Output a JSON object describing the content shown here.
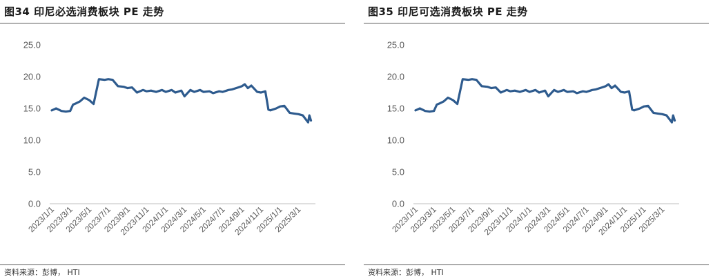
{
  "chart_data": [
    {
      "type": "line",
      "title": "图34 印尼必选消费板块 PE 走势",
      "source": "资料来源：彭博， HTI",
      "ylim": [
        0,
        25
      ],
      "yticks": [
        "25.0",
        "20.0",
        "15.0",
        "10.0",
        "5.0",
        "0.0"
      ],
      "xticks": [
        "2023/1/1",
        "2023/3/1",
        "2023/5/1",
        "2023/7/1",
        "2023/9/1",
        "2023/11/1",
        "2024/1/1",
        "2024/3/1",
        "2024/5/1",
        "2024/7/1",
        "2024/9/1",
        "2024/11/1",
        "2025/1/1",
        "2025/3/1"
      ],
      "grid": false,
      "line_color": "#2e5b8e",
      "series": [
        {
          "x": [
            "2023/1/1",
            "2023/1/15",
            "2023/2/1",
            "2023/2/15",
            "2023/3/1",
            "2023/3/10",
            "2023/3/20",
            "2023/4/1",
            "2023/4/15",
            "2023/5/1",
            "2023/5/15",
            "2023/6/1",
            "2023/6/20",
            "2023/7/1",
            "2023/7/15",
            "2023/8/1",
            "2023/8/20",
            "2023/9/1",
            "2023/9/15",
            "2023/10/1",
            "2023/10/20",
            "2023/11/1",
            "2023/11/15",
            "2023/12/1",
            "2023/12/20",
            "2024/1/1",
            "2024/1/20",
            "2024/2/1",
            "2024/2/20",
            "2024/3/1",
            "2024/3/20",
            "2024/4/1",
            "2024/4/20",
            "2024/5/1",
            "2024/5/20",
            "2024/6/1",
            "2024/6/20",
            "2024/7/1",
            "2024/7/20",
            "2024/8/1",
            "2024/8/20",
            "2024/9/1",
            "2024/9/10",
            "2024/9/20",
            "2024/10/1",
            "2024/10/20",
            "2024/11/1",
            "2024/11/15",
            "2024/11/25",
            "2024/12/1",
            "2024/12/20",
            "2025/1/1",
            "2025/1/15",
            "2025/2/1",
            "2025/2/15",
            "2025/3/1",
            "2025/3/15",
            "2025/4/1",
            "2025/4/5",
            "2025/4/10"
          ],
          "values": [
            14.7,
            15.0,
            14.6,
            14.5,
            14.6,
            15.6,
            15.8,
            16.1,
            16.7,
            16.3,
            15.7,
            19.6,
            19.5,
            19.6,
            19.5,
            18.5,
            18.4,
            18.2,
            18.3,
            17.5,
            17.9,
            17.7,
            17.8,
            17.6,
            17.9,
            17.6,
            17.9,
            17.5,
            17.8,
            16.9,
            17.9,
            17.6,
            17.9,
            17.6,
            17.7,
            17.4,
            17.7,
            17.6,
            17.9,
            18.0,
            18.3,
            18.5,
            18.8,
            18.2,
            18.6,
            17.6,
            17.5,
            17.7,
            14.8,
            14.7,
            15.0,
            15.3,
            15.4,
            14.3,
            14.2,
            14.1,
            13.9,
            12.8,
            13.9,
            13.1
          ]
        }
      ]
    },
    {
      "type": "line",
      "title": "图35 印尼可选消费板块 PE 走势",
      "source": "资料来源：彭博， HTI",
      "ylim": [
        0,
        25
      ],
      "yticks": [
        "25.0",
        "20.0",
        "15.0",
        "10.0",
        "5.0",
        "0.0"
      ],
      "xticks": [
        "2023/1/1",
        "2023/3/1",
        "2023/5/1",
        "2023/7/1",
        "2023/9/1",
        "2023/11/1",
        "2024/1/1",
        "2024/3/1",
        "2024/5/1",
        "2024/7/1",
        "2024/9/1",
        "2024/11/1",
        "2025/1/1",
        "2025/3/1"
      ],
      "grid": false,
      "line_color": "#2e5b8e",
      "series": [
        {
          "x": [
            "2023/1/1",
            "2023/1/15",
            "2023/2/1",
            "2023/2/15",
            "2023/3/1",
            "2023/3/10",
            "2023/3/20",
            "2023/4/1",
            "2023/4/15",
            "2023/5/1",
            "2023/5/15",
            "2023/6/1",
            "2023/6/20",
            "2023/7/1",
            "2023/7/15",
            "2023/8/1",
            "2023/8/20",
            "2023/9/1",
            "2023/9/15",
            "2023/10/1",
            "2023/10/20",
            "2023/11/1",
            "2023/11/15",
            "2023/12/1",
            "2023/12/20",
            "2024/1/1",
            "2024/1/20",
            "2024/2/1",
            "2024/2/20",
            "2024/3/1",
            "2024/3/20",
            "2024/4/1",
            "2024/4/20",
            "2024/5/1",
            "2024/5/20",
            "2024/6/1",
            "2024/6/20",
            "2024/7/1",
            "2024/7/20",
            "2024/8/1",
            "2024/8/20",
            "2024/9/1",
            "2024/9/10",
            "2024/9/20",
            "2024/10/1",
            "2024/10/20",
            "2024/11/1",
            "2024/11/15",
            "2024/11/25",
            "2024/12/1",
            "2024/12/20",
            "2025/1/1",
            "2025/1/15",
            "2025/2/1",
            "2025/2/15",
            "2025/3/1",
            "2025/3/15",
            "2025/4/1",
            "2025/4/5",
            "2025/4/10"
          ],
          "values": [
            14.7,
            15.0,
            14.6,
            14.5,
            14.6,
            15.6,
            15.8,
            16.1,
            16.7,
            16.3,
            15.7,
            19.6,
            19.5,
            19.6,
            19.5,
            18.5,
            18.4,
            18.2,
            18.3,
            17.5,
            17.9,
            17.7,
            17.8,
            17.6,
            17.9,
            17.6,
            17.9,
            17.5,
            17.8,
            16.9,
            17.9,
            17.6,
            17.9,
            17.6,
            17.7,
            17.4,
            17.7,
            17.6,
            17.9,
            18.0,
            18.3,
            18.5,
            18.8,
            18.2,
            18.6,
            17.6,
            17.5,
            17.7,
            14.8,
            14.7,
            15.0,
            15.3,
            15.4,
            14.3,
            14.2,
            14.1,
            13.9,
            12.8,
            13.9,
            13.1
          ]
        }
      ]
    }
  ]
}
